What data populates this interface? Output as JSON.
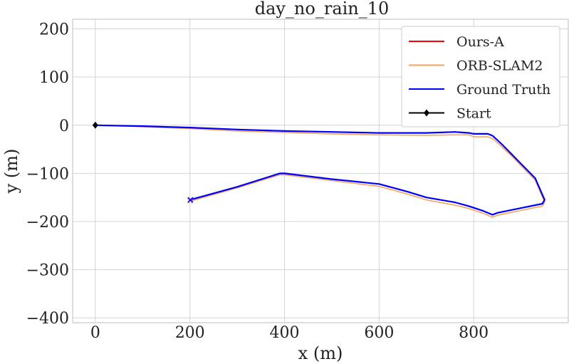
{
  "chart_data": {
    "type": "line",
    "title": "day_no_rain_10",
    "xlabel": "x (m)",
    "ylabel": "y (m)",
    "xlim": [
      -48,
      1000
    ],
    "ylim": [
      -410,
      220
    ],
    "xticks": [
      0,
      200,
      400,
      600,
      800
    ],
    "yticks": [
      200,
      100,
      0,
      -100,
      -200,
      -300,
      -400
    ],
    "xtick_labels": [
      "0",
      "200",
      "400",
      "600",
      "800"
    ],
    "ytick_labels": [
      "200",
      "100",
      "0",
      "−100",
      "−200",
      "−300",
      "−400"
    ],
    "grid": true,
    "legend_position": "top-right",
    "series": [
      {
        "name": "Ours-A",
        "color": "#ff0000",
        "x": [
          0,
          100,
          200,
          300,
          400,
          500,
          600,
          700,
          760,
          790,
          800,
          830,
          840,
          860,
          880,
          900,
          930,
          950,
          945,
          900,
          850,
          840,
          820,
          790,
          760,
          700,
          660,
          600,
          500,
          400,
          390,
          300,
          200
        ],
        "y": [
          0,
          -2,
          -5,
          -9,
          -12,
          -14,
          -16,
          -16,
          -14,
          -16,
          -18,
          -18,
          -22,
          -40,
          -60,
          -80,
          -110,
          -155,
          -163,
          -172,
          -182,
          -186,
          -178,
          -168,
          -160,
          -150,
          -138,
          -122,
          -112,
          -100,
          -100,
          -128,
          -155
        ]
      },
      {
        "name": "ORB-SLAM2",
        "color": "#f4a460",
        "x": [
          0,
          100,
          200,
          300,
          400,
          500,
          600,
          700,
          760,
          790,
          800,
          830,
          840,
          860,
          880,
          900,
          930,
          950,
          945,
          900,
          850,
          840,
          820,
          790,
          760,
          700,
          660,
          600,
          500,
          400,
          390,
          300,
          200
        ],
        "y": [
          0,
          -3,
          -7,
          -12,
          -15,
          -18,
          -20,
          -21,
          -20,
          -20,
          -24,
          -24,
          -28,
          -45,
          -64,
          -84,
          -114,
          -160,
          -168,
          -177,
          -187,
          -191,
          -183,
          -173,
          -166,
          -155,
          -143,
          -127,
          -115,
          -103,
          -103,
          -130,
          -158
        ]
      },
      {
        "name": "Ground Truth",
        "color": "#0000ff",
        "x": [
          0,
          100,
          200,
          300,
          400,
          500,
          600,
          700,
          760,
          790,
          800,
          830,
          840,
          860,
          880,
          900,
          930,
          950,
          945,
          900,
          850,
          840,
          820,
          790,
          760,
          700,
          660,
          600,
          500,
          400,
          390,
          300,
          200
        ],
        "y": [
          0,
          -2,
          -5,
          -9,
          -12,
          -14,
          -16,
          -16,
          -14,
          -16,
          -18,
          -18,
          -22,
          -40,
          -60,
          -80,
          -110,
          -155,
          -163,
          -172,
          -182,
          -186,
          -178,
          -168,
          -160,
          -150,
          -138,
          -122,
          -112,
          -100,
          -100,
          -128,
          -155
        ]
      }
    ],
    "start": {
      "name": "Start",
      "color": "#000000",
      "x": 0,
      "y": 0
    },
    "end_markers": [
      {
        "x": 200,
        "y": -157,
        "color": "#f4a460"
      },
      {
        "x": 201,
        "y": -155,
        "color": "#0000ff"
      }
    ]
  }
}
